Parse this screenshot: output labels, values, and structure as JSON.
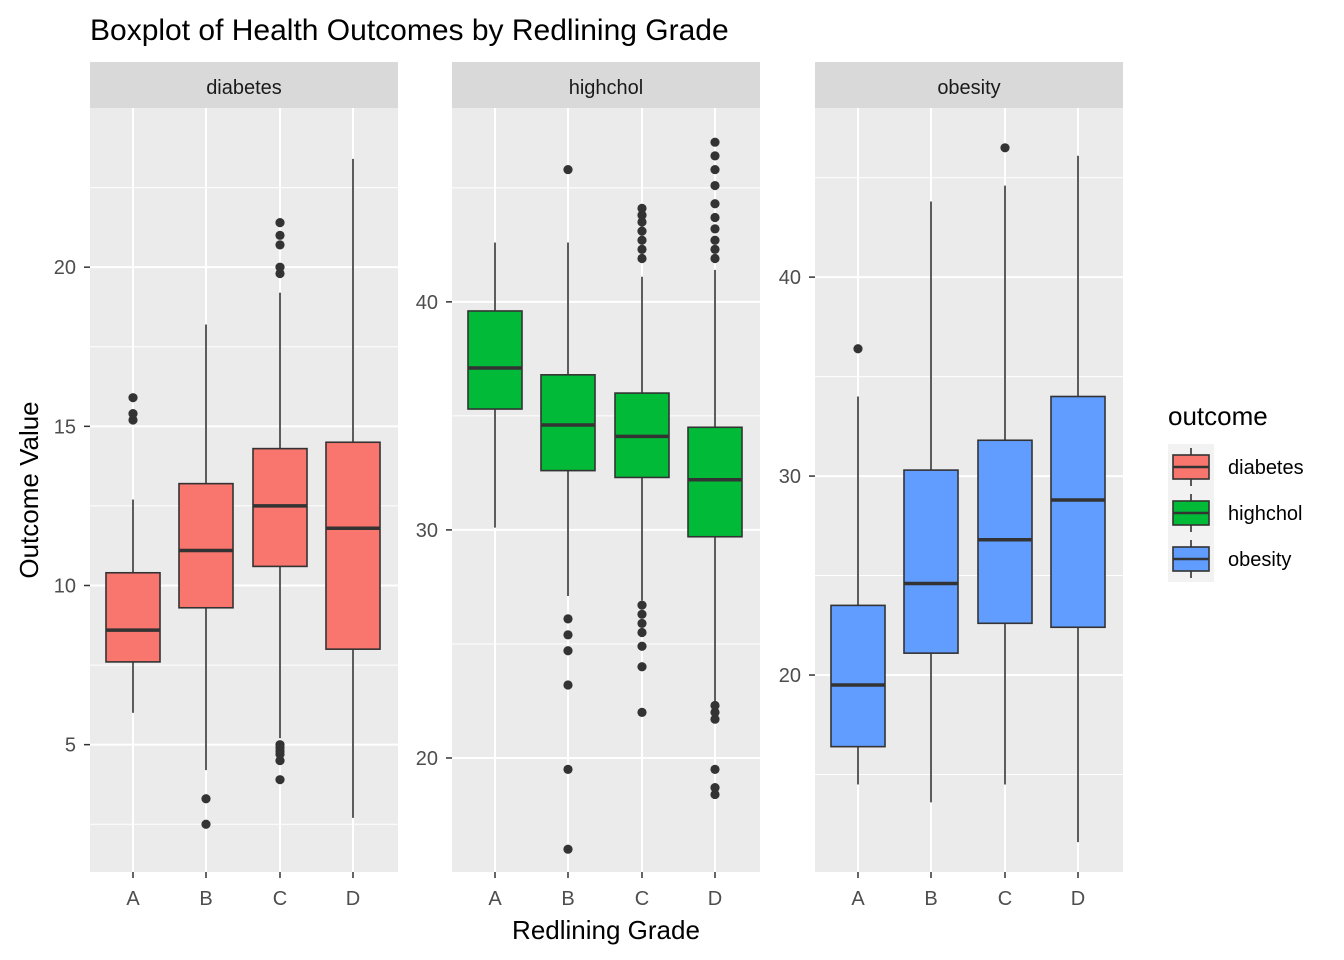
{
  "chart_data": {
    "type": "boxplot",
    "title": "Boxplot of Health Outcomes by Redlining Grade",
    "xlabel": "Redlining Grade",
    "ylabel": "Outcome Value",
    "categories": [
      "A",
      "B",
      "C",
      "D"
    ],
    "grid": true,
    "legend": {
      "title": "outcome",
      "position": "right",
      "entries": [
        {
          "label": "diabetes",
          "color": "#F8766D"
        },
        {
          "label": "highchol",
          "color": "#00BA38"
        },
        {
          "label": "obesity",
          "color": "#619CFF"
        }
      ]
    },
    "panels": [
      {
        "name": "diabetes",
        "color": "#F8766D",
        "ylim": [
          1.0,
          25.0
        ],
        "yticks": [
          5,
          10,
          15,
          20
        ],
        "boxes": [
          {
            "category": "A",
            "lower_whisker": 6.0,
            "q1": 7.6,
            "median": 8.6,
            "q3": 10.4,
            "upper_whisker": 12.7,
            "outliers": [
              15.2,
              15.4,
              15.9
            ]
          },
          {
            "category": "B",
            "lower_whisker": 4.2,
            "q1": 9.3,
            "median": 11.1,
            "q3": 13.2,
            "upper_whisker": 18.2,
            "outliers": [
              2.5,
              3.3
            ]
          },
          {
            "category": "C",
            "lower_whisker": 5.2,
            "q1": 10.6,
            "median": 12.5,
            "q3": 14.3,
            "upper_whisker": 19.2,
            "outliers": [
              3.9,
              4.5,
              4.7,
              4.8,
              4.9,
              5.0,
              19.8,
              20.0,
              20.7,
              21.0,
              21.4
            ]
          },
          {
            "category": "D",
            "lower_whisker": 2.7,
            "q1": 8.0,
            "median": 11.8,
            "q3": 14.5,
            "upper_whisker": 23.4,
            "outliers": []
          }
        ]
      },
      {
        "name": "highchol",
        "color": "#00BA38",
        "ylim": [
          15.0,
          48.5
        ],
        "yticks": [
          20,
          30,
          40
        ],
        "boxes": [
          {
            "category": "A",
            "lower_whisker": 30.1,
            "q1": 35.3,
            "median": 37.1,
            "q3": 39.6,
            "upper_whisker": 42.6,
            "outliers": []
          },
          {
            "category": "B",
            "lower_whisker": 27.1,
            "q1": 32.6,
            "median": 34.6,
            "q3": 36.8,
            "upper_whisker": 42.6,
            "outliers": [
              16.0,
              19.5,
              23.2,
              24.7,
              25.4,
              26.1,
              45.8
            ]
          },
          {
            "category": "C",
            "lower_whisker": 26.9,
            "q1": 32.3,
            "median": 34.1,
            "q3": 36.0,
            "upper_whisker": 41.1,
            "outliers": [
              22.0,
              24.0,
              24.9,
              25.5,
              25.9,
              26.3,
              26.7,
              41.9,
              42.3,
              42.7,
              43.1,
              43.5,
              43.8,
              44.1
            ]
          },
          {
            "category": "D",
            "lower_whisker": 22.5,
            "q1": 29.7,
            "median": 32.2,
            "q3": 34.5,
            "upper_whisker": 41.4,
            "outliers": [
              18.4,
              18.7,
              19.5,
              21.7,
              22.0,
              22.3,
              41.9,
              42.3,
              42.7,
              43.2,
              43.7,
              44.3,
              45.1,
              45.8,
              46.4,
              47.0
            ]
          }
        ]
      },
      {
        "name": "obesity",
        "color": "#619CFF",
        "ylim": [
          10.1,
          48.5
        ],
        "yticks": [
          20,
          30,
          40
        ],
        "boxes": [
          {
            "category": "A",
            "lower_whisker": 14.5,
            "q1": 16.4,
            "median": 19.5,
            "q3": 23.5,
            "upper_whisker": 34.0,
            "outliers": [
              36.4
            ]
          },
          {
            "category": "B",
            "lower_whisker": 13.6,
            "q1": 21.1,
            "median": 24.6,
            "q3": 30.3,
            "upper_whisker": 43.8,
            "outliers": []
          },
          {
            "category": "C",
            "lower_whisker": 14.5,
            "q1": 22.6,
            "median": 26.8,
            "q3": 31.8,
            "upper_whisker": 44.6,
            "outliers": [
              46.5
            ]
          },
          {
            "category": "D",
            "lower_whisker": 11.6,
            "q1": 22.4,
            "median": 28.8,
            "q3": 34.0,
            "upper_whisker": 46.1,
            "outliers": []
          }
        ]
      }
    ]
  }
}
